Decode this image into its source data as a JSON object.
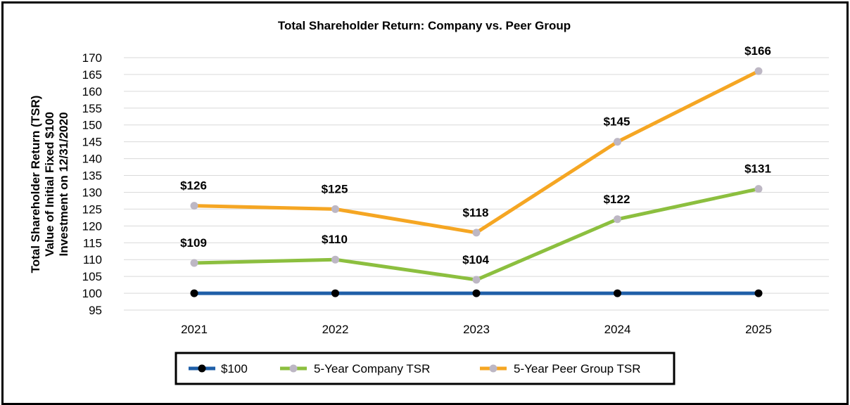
{
  "chart_data": {
    "type": "line",
    "title": "Total Shareholder Return: Company vs. Peer Group",
    "xlabel": "",
    "ylabel_lines": [
      "Total Shareholder Return (TSR)",
      "Value of Initial Fixed $100",
      "Investment on 12/31/2020"
    ],
    "categories": [
      "2021",
      "2022",
      "2023",
      "2024",
      "2025"
    ],
    "ylim": [
      95,
      170
    ],
    "yticks": [
      "95",
      "100",
      "105",
      "110",
      "115",
      "120",
      "125",
      "130",
      "135",
      "140",
      "145",
      "150",
      "155",
      "160",
      "165",
      "170"
    ],
    "grid": true,
    "legend_position": "bottom-center",
    "series": [
      {
        "name": "$100",
        "values": [
          100,
          100,
          100,
          100,
          100
        ],
        "labels": [],
        "line_color": "#1f5fa8",
        "marker_color": "#000000"
      },
      {
        "name": "5-Year Company TSR",
        "values": [
          109,
          110,
          104,
          122,
          131
        ],
        "labels": [
          "$109",
          "$110",
          "$104",
          "$122",
          "$131"
        ],
        "line_color": "#8cbf3f",
        "marker_color": "#bdb7c4"
      },
      {
        "name": "5-Year Peer Group TSR",
        "values": [
          126,
          125,
          118,
          145,
          166
        ],
        "labels": [
          "$126",
          "$125",
          "$118",
          "$145",
          "$166"
        ],
        "line_color": "#f5a623",
        "marker_color": "#bdb7c4"
      }
    ]
  }
}
